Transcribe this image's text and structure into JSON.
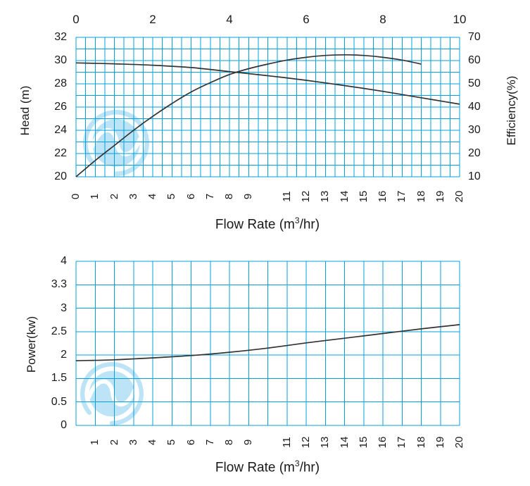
{
  "colors": {
    "grid": "#00A0DC",
    "curve": "#333333",
    "watermark": "#BDE3F7",
    "text": "#1a1a1a",
    "background": "#ffffff"
  },
  "watermark_icon": "swirl-logo",
  "chart_data": [
    {
      "name": "head-efficiency-curve",
      "type": "line",
      "grid": "on",
      "legend": "none",
      "top_x_axis": {
        "ticks": [
          "0",
          "2",
          "4",
          "6",
          "8",
          "10"
        ],
        "range": [
          0,
          10
        ]
      },
      "bottom_x_axis": {
        "label_pre": "Flow Rate (m",
        "label_sup": "3",
        "label_post": "/hr)",
        "ticks": [
          "0",
          "1",
          "2",
          "3",
          "4",
          "5",
          "6",
          "7",
          "8",
          "9",
          "11",
          "12",
          "13",
          "14",
          "15",
          "16",
          "17",
          "18",
          "19",
          "20"
        ],
        "range": [
          0,
          20
        ]
      },
      "left_y_axis": {
        "label": "Head (m)",
        "ticks": [
          "32",
          "30",
          "28",
          "26",
          "24",
          "22",
          "20"
        ],
        "range": [
          20,
          32
        ]
      },
      "right_y_axis": {
        "label": "Efficiency(%)",
        "ticks": [
          "70",
          "60",
          "50",
          "40",
          "30",
          "20",
          "10"
        ],
        "range": [
          10,
          70
        ]
      },
      "series": [
        {
          "name": "head",
          "y_axis": "left",
          "points": [
            [
              0,
              29.8
            ],
            [
              2,
              29.72
            ],
            [
              4,
              29.6
            ],
            [
              6,
              29.4
            ],
            [
              8,
              29.05
            ],
            [
              10,
              28.7
            ],
            [
              12,
              28.3
            ],
            [
              14,
              27.85
            ],
            [
              16,
              27.35
            ],
            [
              18,
              26.8
            ],
            [
              20,
              26.25
            ]
          ]
        },
        {
          "name": "efficiency",
          "y_axis": "right",
          "points": [
            [
              0,
              10
            ],
            [
              1,
              17
            ],
            [
              2,
              23.5
            ],
            [
              3,
              30
            ],
            [
              4,
              36
            ],
            [
              5,
              41.5
            ],
            [
              6,
              46.5
            ],
            [
              7,
              50.5
            ],
            [
              8,
              54
            ],
            [
              9,
              56.5
            ],
            [
              10,
              58.5
            ],
            [
              11,
              60.2
            ],
            [
              12,
              61.4
            ],
            [
              13,
              62.2
            ],
            [
              14,
              62.5
            ],
            [
              15,
              62.2
            ],
            [
              16,
              61.4
            ],
            [
              17,
              60.2
            ],
            [
              18,
              58.5
            ]
          ]
        }
      ]
    },
    {
      "name": "power-curve",
      "type": "line",
      "grid": "on",
      "legend": "none",
      "bottom_x_axis": {
        "label_pre": "Flow Rate (m",
        "label_sup": "3",
        "label_post": "/hr)",
        "ticks": [
          "1",
          "2",
          "3",
          "4",
          "5",
          "6",
          "7",
          "8",
          "9",
          "11",
          "12",
          "13",
          "14",
          "15",
          "16",
          "17",
          "18",
          "19",
          "20"
        ],
        "range": [
          0,
          20
        ]
      },
      "left_y_axis": {
        "label": "Power(kw)",
        "ticks": [
          "4",
          "3.3",
          "3",
          "2.5",
          "2",
          "1.5",
          "0.5",
          "0"
        ],
        "range": [
          0,
          4
        ]
      },
      "series": [
        {
          "name": "power",
          "y_axis": "left",
          "points": [
            [
              0,
              1.88
            ],
            [
              2,
              1.9
            ],
            [
              4,
              1.94
            ],
            [
              6,
              1.99
            ],
            [
              8,
              2.06
            ],
            [
              10,
              2.15
            ],
            [
              12,
              2.26
            ],
            [
              14,
              2.36
            ],
            [
              16,
              2.46
            ],
            [
              18,
              2.56
            ],
            [
              20,
              2.65
            ]
          ]
        }
      ]
    }
  ]
}
